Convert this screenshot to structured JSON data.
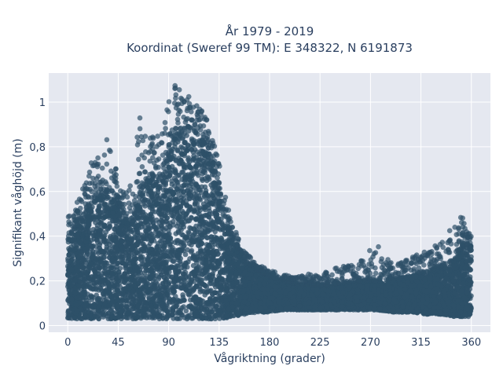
{
  "chart_data": {
    "type": "scatter",
    "title_line1": "År 1979 - 2019",
    "title_line2": "Koordinat (Sweref 99 TM): E 348322, N 6191873",
    "xlabel": "Vågriktning (grader)",
    "ylabel": "Signifikant våghöjd (m)",
    "xlim": [
      -17,
      377
    ],
    "ylim": [
      -0.03,
      1.13
    ],
    "xticks": [
      0,
      45,
      90,
      135,
      180,
      225,
      270,
      315,
      360
    ],
    "xtick_labels": [
      "0",
      "45",
      "90",
      "135",
      "180",
      "225",
      "270",
      "315",
      "360"
    ],
    "yticks": [
      0,
      0.2,
      0.4,
      0.6,
      0.8,
      1
    ],
    "ytick_labels": [
      "0",
      "0,2",
      "0,4",
      "0,6",
      "0,8",
      "1"
    ],
    "grid": true,
    "legend": "none",
    "marker_color": "#2e5068",
    "plot_bg": "#e5e8f0",
    "envelope": {
      "dir": [
        0,
        5,
        10,
        15,
        20,
        25,
        30,
        35,
        40,
        45,
        50,
        55,
        60,
        65,
        70,
        75,
        80,
        85,
        90,
        95,
        100,
        105,
        110,
        115,
        120,
        125,
        130,
        135,
        140,
        145,
        150,
        155,
        160,
        170,
        180,
        190,
        200,
        215,
        230,
        245,
        260,
        275,
        290,
        305,
        320,
        335,
        345,
        350,
        355,
        360
      ],
      "low": [
        0.03,
        0.03,
        0.03,
        0.03,
        0.03,
        0.03,
        0.03,
        0.03,
        0.03,
        0.03,
        0.03,
        0.03,
        0.03,
        0.03,
        0.03,
        0.03,
        0.03,
        0.03,
        0.03,
        0.03,
        0.03,
        0.03,
        0.03,
        0.03,
        0.03,
        0.03,
        0.03,
        0.03,
        0.03,
        0.04,
        0.04,
        0.05,
        0.05,
        0.06,
        0.06,
        0.07,
        0.07,
        0.07,
        0.07,
        0.07,
        0.07,
        0.07,
        0.06,
        0.06,
        0.05,
        0.05,
        0.04,
        0.04,
        0.04,
        0.04
      ],
      "high": [
        0.38,
        0.42,
        0.46,
        0.5,
        0.55,
        0.58,
        0.6,
        0.62,
        0.6,
        0.56,
        0.5,
        0.46,
        0.52,
        0.6,
        0.66,
        0.68,
        0.62,
        0.68,
        0.76,
        0.84,
        0.88,
        0.9,
        0.88,
        0.86,
        0.84,
        0.8,
        0.72,
        0.6,
        0.48,
        0.42,
        0.36,
        0.32,
        0.28,
        0.24,
        0.22,
        0.2,
        0.19,
        0.18,
        0.18,
        0.19,
        0.2,
        0.2,
        0.21,
        0.22,
        0.24,
        0.27,
        0.3,
        0.34,
        0.36,
        0.36
      ],
      "outlier": [
        0.49,
        0.5,
        0.58,
        0.64,
        0.72,
        0.78,
        0.85,
        0.86,
        0.8,
        0.66,
        0.6,
        0.62,
        0.8,
        0.95,
        0.88,
        0.84,
        0.9,
        0.96,
        1.0,
        1.08,
        1.06,
        1.04,
        1.02,
        1.03,
        0.96,
        0.92,
        0.84,
        0.74,
        0.6,
        0.48,
        0.42,
        0.36,
        0.32,
        0.27,
        0.25,
        0.23,
        0.22,
        0.23,
        0.24,
        0.27,
        0.28,
        0.38,
        0.27,
        0.3,
        0.34,
        0.38,
        0.46,
        0.49,
        0.47,
        0.41
      ]
    }
  }
}
